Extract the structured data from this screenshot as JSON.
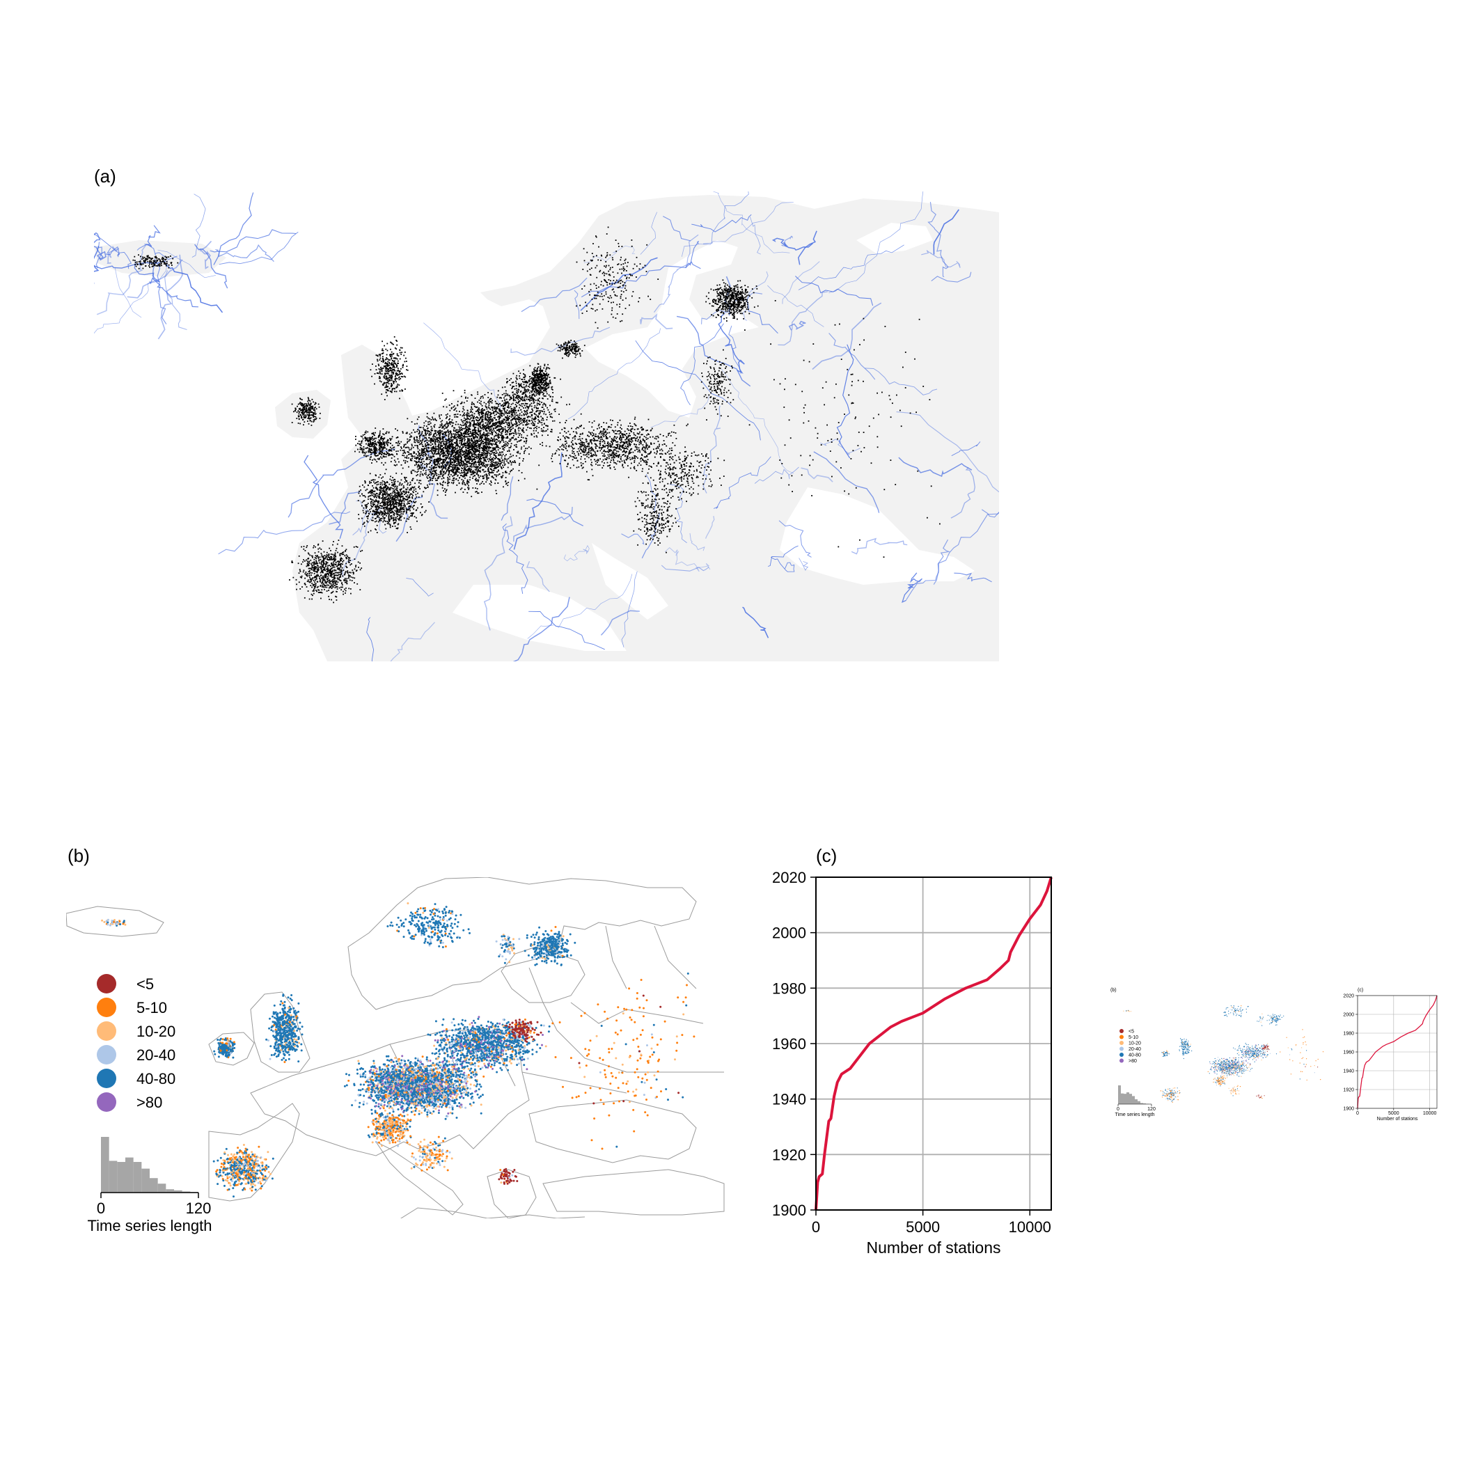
{
  "figure": {
    "panel_a": {
      "label": "(a)"
    },
    "panel_b": {
      "label": "(b)"
    },
    "panel_c": {
      "label": "(c)"
    }
  },
  "legend": {
    "title": "",
    "items": [
      {
        "label": "<5",
        "color": "#a52a2a"
      },
      {
        "label": "5-10",
        "color": "#ff7f0e"
      },
      {
        "label": "10-20",
        "color": "#ffbb78"
      },
      {
        "label": "20-40",
        "color": "#aec7e8"
      },
      {
        "label": "40-80",
        "color": "#1f77b4"
      },
      {
        "label": ">80",
        "color": "#9467bd"
      }
    ]
  },
  "colors": {
    "land": "#f2f2f2",
    "rivers": "#4169e1",
    "stations_a": "#000000",
    "borders": "#9a9a9a",
    "histogram": "#a6a6a6",
    "curve": "#dc143c",
    "grid": "#b0b0b0"
  },
  "chart_data": [
    {
      "type": "bar",
      "panel": "b-inset",
      "title": "",
      "xlabel": "Time series length",
      "ylabel": "",
      "x_ticks": [
        "0",
        "120"
      ],
      "xlim": [
        0,
        120
      ],
      "bin_edges": [
        0,
        10,
        20,
        30,
        40,
        50,
        60,
        70,
        80,
        90,
        100,
        110,
        120
      ],
      "values": [
        1.0,
        0.57,
        0.55,
        0.63,
        0.55,
        0.43,
        0.26,
        0.16,
        0.06,
        0.04,
        0.02,
        0.01
      ]
    },
    {
      "type": "line",
      "panel": "c",
      "title": "",
      "xlabel": "Number of stations",
      "ylabel": "",
      "xlim": [
        0,
        11000
      ],
      "ylim": [
        1900,
        2020
      ],
      "x_ticks": [
        "0",
        "5000",
        "10000"
      ],
      "y_ticks": [
        "1900",
        "1920",
        "1940",
        "1960",
        "1980",
        "2000",
        "2020"
      ],
      "grid": true,
      "series": [
        {
          "x": [
            0,
            80,
            150,
            300,
            400,
            500,
            600,
            700,
            850,
            1000,
            1200,
            1600,
            2000,
            2500,
            3000,
            3500,
            4000,
            5000,
            6000,
            7000,
            8000,
            8600,
            9000,
            9100,
            9500,
            10000,
            10500,
            10800,
            11000
          ],
          "y": [
            1900,
            1910,
            1912,
            1913,
            1920,
            1926,
            1932,
            1933,
            1941,
            1946,
            1949,
            1951,
            1955,
            1960,
            1963,
            1966,
            1968,
            1971,
            1976,
            1980,
            1983,
            1987,
            1990,
            1993,
            1999,
            2005,
            2010,
            2015,
            2020
          ]
        }
      ]
    }
  ]
}
